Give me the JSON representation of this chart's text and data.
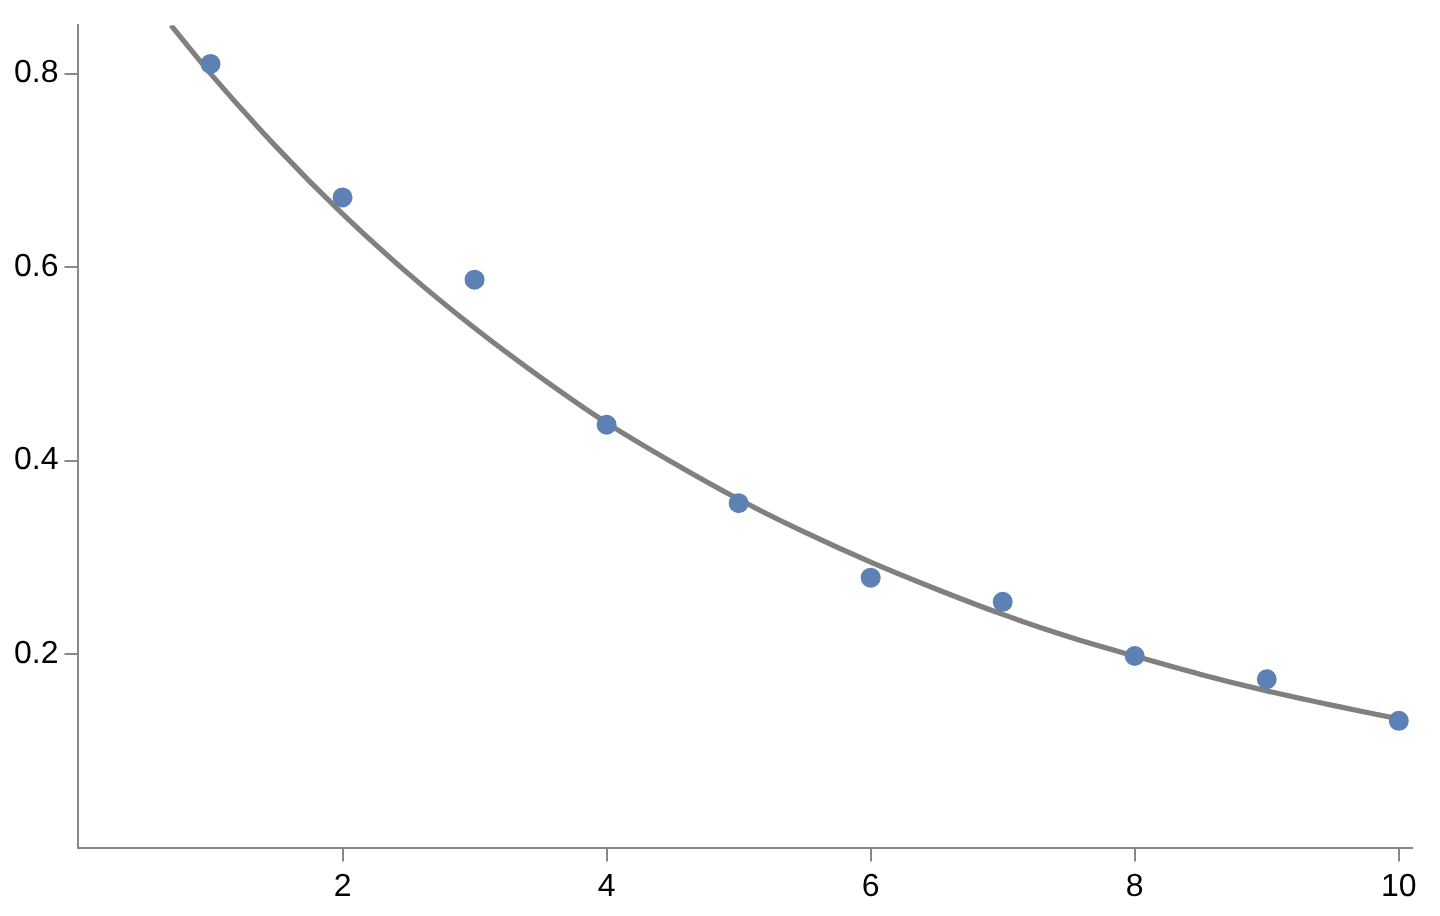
{
  "chart_data": {
    "type": "scatter",
    "xlim": [
      0,
      10.1
    ],
    "ylim": [
      0,
      0.85
    ],
    "xticks": [
      2,
      4,
      6,
      8,
      10
    ],
    "yticks": [
      0.2,
      0.4,
      0.6,
      0.8
    ],
    "grid": false,
    "legend": false,
    "series": [
      {
        "marker": "circle",
        "color": "#5e81b5",
        "x": [
          1,
          2,
          3,
          4,
          5,
          6,
          7,
          8,
          9,
          10
        ],
        "values": [
          0.81,
          0.672,
          0.587,
          0.437,
          0.356,
          0.279,
          0.254,
          0.198,
          0.174,
          0.131
        ]
      },
      {
        "type": "line",
        "marker": "none",
        "color": "#808080",
        "x": [
          0.7,
          1,
          1.5,
          2,
          2.5,
          3,
          3.5,
          4,
          4.5,
          5,
          5.5,
          6,
          6.5,
          7,
          7.5,
          8,
          8.5,
          9,
          9.5,
          10
        ],
        "values": [
          0.85,
          0.8,
          0.724,
          0.655,
          0.593,
          0.537,
          0.486,
          0.439,
          0.398,
          0.36,
          0.326,
          0.295,
          0.267,
          0.241,
          0.218,
          0.198,
          0.179,
          0.162,
          0.147,
          0.133
        ]
      }
    ]
  }
}
